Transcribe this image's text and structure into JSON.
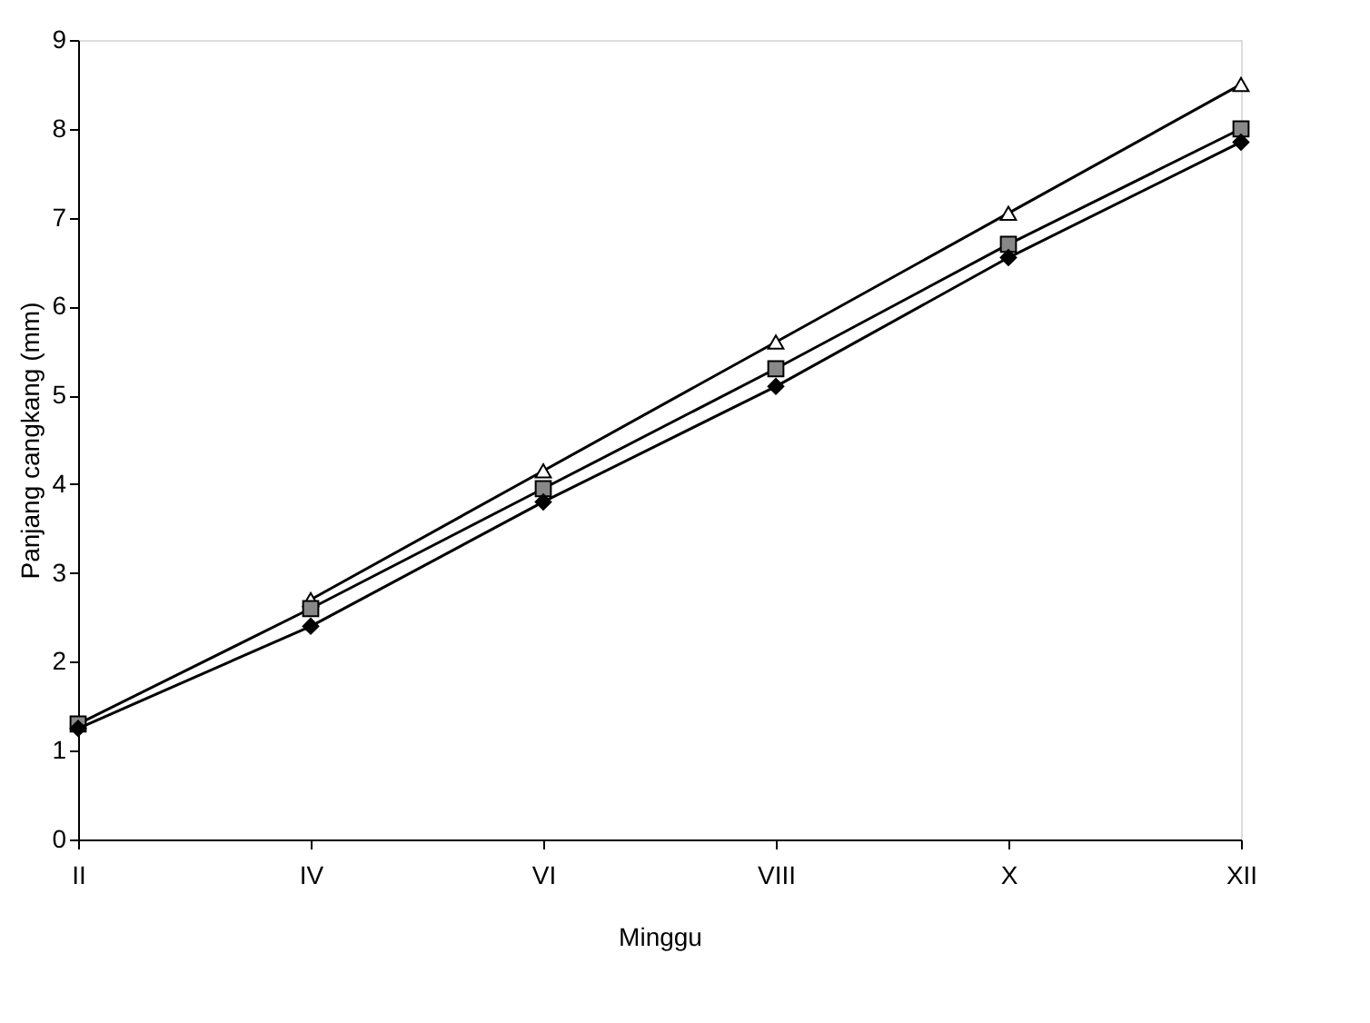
{
  "chart_data": {
    "type": "line",
    "xlabel": "Minggu",
    "ylabel": "Panjang cangkang (mm)",
    "categories": [
      "II",
      "IV",
      "VI",
      "VIII",
      "X",
      "XII"
    ],
    "series": [
      {
        "color": "#000000",
        "marker": "triangle",
        "values": [
          null,
          2.7,
          4.15,
          5.6,
          7.05,
          8.5
        ]
      },
      {
        "color": "#000000",
        "marker": "square",
        "values": [
          1.3,
          2.6,
          3.95,
          5.3,
          6.7,
          8.0
        ]
      },
      {
        "color": "#000000",
        "marker": "diamond",
        "values": [
          1.25,
          2.4,
          3.8,
          5.1,
          6.55,
          7.85
        ]
      }
    ],
    "ylim": [
      0,
      9
    ],
    "yticks": [
      0,
      1,
      2,
      3,
      4,
      5,
      6,
      7,
      8,
      9
    ],
    "grid": false
  }
}
